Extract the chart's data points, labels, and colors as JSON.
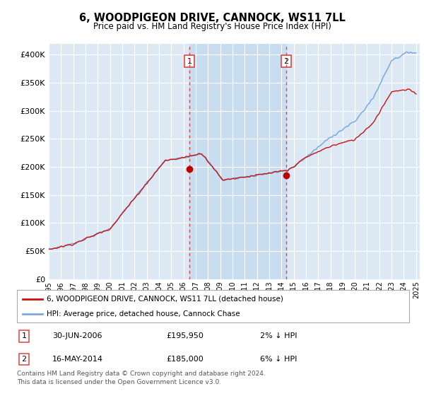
{
  "title": "6, WOODPIGEON DRIVE, CANNOCK, WS11 7LL",
  "subtitle": "Price paid vs. HM Land Registry's House Price Index (HPI)",
  "background_color": "#ffffff",
  "plot_bg_color": "#dce9f5",
  "shade_color": "#c8ddf0",
  "grid_color": "#ffffff",
  "hpi_line_color": "#7aaadd",
  "price_line_color": "#cc1111",
  "marker_color": "#bb0000",
  "dashed_line_color": "#dd4444",
  "ylim": [
    0,
    420000
  ],
  "yticks": [
    0,
    50000,
    100000,
    150000,
    200000,
    250000,
    300000,
    350000,
    400000
  ],
  "ytick_labels": [
    "£0",
    "£50K",
    "£100K",
    "£150K",
    "£200K",
    "£250K",
    "£300K",
    "£350K",
    "£400K"
  ],
  "sale1_yr": 2006.5,
  "sale1_price": 195950,
  "sale2_yr": 2014.37,
  "sale2_price": 185000,
  "sale1_date_str": "30-JUN-2006",
  "sale1_pct": "2% ↓ HPI",
  "sale2_date_str": "16-MAY-2014",
  "sale2_pct": "6% ↓ HPI",
  "legend_label1": "6, WOODPIGEON DRIVE, CANNOCK, WS11 7LL (detached house)",
  "legend_label2": "HPI: Average price, detached house, Cannock Chase",
  "footer": "Contains HM Land Registry data © Crown copyright and database right 2024.\nThis data is licensed under the Open Government Licence v3.0.",
  "xtick_years": [
    "1995",
    "1996",
    "1997",
    "1998",
    "1999",
    "2000",
    "2001",
    "2002",
    "2003",
    "2004",
    "2005",
    "2006",
    "2007",
    "2008",
    "2009",
    "2010",
    "2011",
    "2012",
    "2013",
    "2014",
    "2015",
    "2016",
    "2017",
    "2018",
    "2019",
    "2020",
    "2021",
    "2022",
    "2023",
    "2024",
    "2025"
  ]
}
